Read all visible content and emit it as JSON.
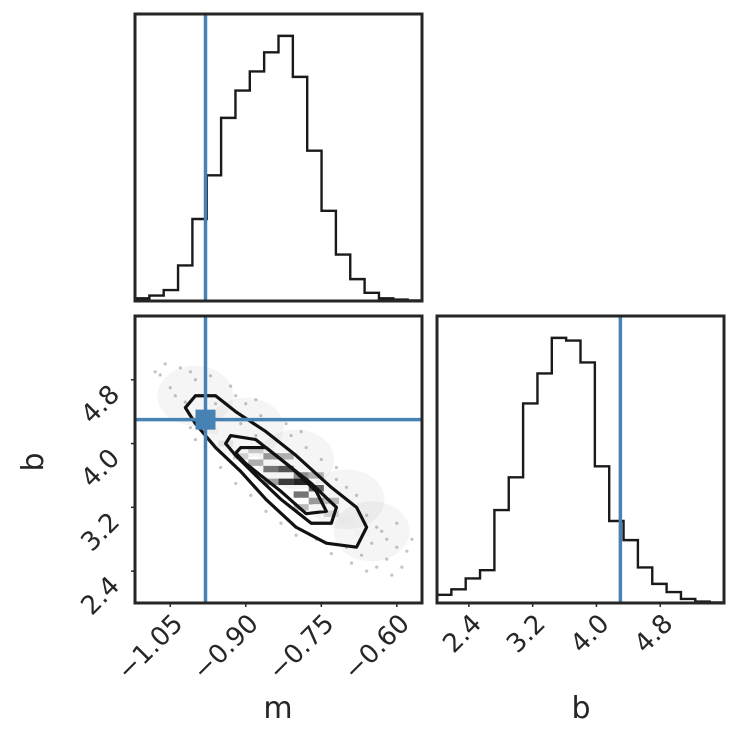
{
  "chart_data": {
    "type": "corner",
    "parameters": [
      "m",
      "b"
    ],
    "truths": {
      "m": -0.98,
      "b": 4.3
    },
    "colors": {
      "truth": "#4682b4",
      "hist": "#1a1a1a",
      "frame": "#262626",
      "contour": "#111111"
    },
    "hist_m": {
      "xlim": [
        -1.12,
        -0.55
      ],
      "ymax": 1.0,
      "bin_edges": [
        -1.12,
        -1.0915,
        -1.063,
        -1.0345,
        -1.006,
        -0.9775,
        -0.949,
        -0.9205,
        -0.892,
        -0.8635,
        -0.835,
        -0.8065,
        -0.778,
        -0.7495,
        -0.721,
        -0.6925,
        -0.664,
        -0.6355,
        -0.607,
        -0.5785,
        -0.55
      ],
      "counts": [
        0.01,
        0.02,
        0.04,
        0.13,
        0.3,
        0.46,
        0.67,
        0.77,
        0.84,
        0.91,
        0.97,
        0.82,
        0.55,
        0.33,
        0.17,
        0.08,
        0.03,
        0.01,
        0.005,
        0.002
      ]
    },
    "hist_b": {
      "xlim": [
        2.0,
        5.6
      ],
      "ymax": 1.0,
      "bin_edges": [
        2.0,
        2.18,
        2.36,
        2.54,
        2.72,
        2.9,
        3.08,
        3.26,
        3.44,
        3.62,
        3.8,
        3.98,
        4.16,
        4.34,
        4.52,
        4.7,
        4.88,
        5.06,
        5.24,
        5.42,
        5.6
      ],
      "counts": [
        0.03,
        0.05,
        0.09,
        0.12,
        0.34,
        0.46,
        0.73,
        0.84,
        0.97,
        0.96,
        0.88,
        0.5,
        0.3,
        0.23,
        0.13,
        0.07,
        0.04,
        0.015,
        0.005,
        0.002
      ]
    },
    "scatter": {
      "xlim": [
        -1.12,
        -0.55
      ],
      "ylim": [
        2.0,
        5.6
      ],
      "x_tick_labels": [
        "−1.05",
        "−0.90",
        "−0.75",
        "−0.60"
      ],
      "x_ticks": [
        -1.05,
        -0.9,
        -0.75,
        -0.6
      ],
      "y_tick_labels": [
        "2.4",
        "3.2",
        "4.0",
        "4.8"
      ],
      "y_ticks": [
        2.4,
        3.2,
        4.0,
        4.8
      ],
      "contours": [
        [
          [
            -1.0,
            4.6
          ],
          [
            -0.96,
            4.6
          ],
          [
            -0.92,
            4.4
          ],
          [
            -0.86,
            4.15
          ],
          [
            -0.8,
            3.85
          ],
          [
            -0.73,
            3.45
          ],
          [
            -0.68,
            3.2
          ],
          [
            -0.66,
            2.95
          ],
          [
            -0.68,
            2.7
          ],
          [
            -0.74,
            2.75
          ],
          [
            -0.8,
            2.95
          ],
          [
            -0.86,
            3.3
          ],
          [
            -0.91,
            3.65
          ],
          [
            -0.96,
            3.95
          ],
          [
            -1.0,
            4.25
          ],
          [
            -1.02,
            4.45
          ]
        ],
        [
          [
            -0.93,
            4.1
          ],
          [
            -0.88,
            4.05
          ],
          [
            -0.83,
            3.8
          ],
          [
            -0.77,
            3.5
          ],
          [
            -0.72,
            3.2
          ],
          [
            -0.73,
            3.0
          ],
          [
            -0.77,
            3.0
          ],
          [
            -0.83,
            3.3
          ],
          [
            -0.88,
            3.6
          ],
          [
            -0.92,
            3.85
          ],
          [
            -0.94,
            4.0
          ]
        ],
        [
          [
            -0.91,
            3.95
          ],
          [
            -0.86,
            3.95
          ],
          [
            -0.81,
            3.7
          ],
          [
            -0.76,
            3.4
          ],
          [
            -0.74,
            3.15
          ],
          [
            -0.78,
            3.12
          ],
          [
            -0.83,
            3.4
          ],
          [
            -0.87,
            3.6
          ],
          [
            -0.9,
            3.75
          ],
          [
            -0.92,
            3.88
          ]
        ]
      ],
      "density_cells": [
        [
          -0.88,
          3.92,
          0.25
        ],
        [
          -0.85,
          3.84,
          0.45
        ],
        [
          -0.82,
          3.84,
          0.35
        ],
        [
          -0.88,
          3.76,
          0.35
        ],
        [
          -0.85,
          3.68,
          0.6
        ],
        [
          -0.82,
          3.68,
          0.75
        ],
        [
          -0.79,
          3.6,
          0.5
        ],
        [
          -0.82,
          3.52,
          0.85
        ],
        [
          -0.79,
          3.52,
          0.95
        ],
        [
          -0.76,
          3.44,
          0.7
        ],
        [
          -0.79,
          3.36,
          0.6
        ],
        [
          -0.76,
          3.28,
          0.45
        ],
        [
          -0.73,
          3.28,
          0.3
        ],
        [
          -0.85,
          3.52,
          0.4
        ],
        [
          -0.76,
          3.6,
          0.35
        ],
        [
          -0.91,
          3.84,
          0.2
        ],
        [
          -0.73,
          3.12,
          0.2
        ],
        [
          -0.79,
          3.2,
          0.3
        ],
        [
          -0.94,
          4.0,
          0.12
        ],
        [
          -0.7,
          3.04,
          0.1
        ],
        [
          -0.97,
          4.16,
          0.08
        ],
        [
          -0.67,
          2.88,
          0.06
        ]
      ],
      "points": [
        [
          -1.07,
          4.86
        ],
        [
          -1.05,
          4.7
        ],
        [
          -1.03,
          4.95
        ],
        [
          -1.0,
          4.8
        ],
        [
          -0.98,
          4.66
        ],
        [
          -1.02,
          4.52
        ],
        [
          -1.04,
          4.6
        ],
        [
          -0.95,
          4.55
        ],
        [
          -0.93,
          4.72
        ],
        [
          -0.9,
          4.5
        ],
        [
          -0.87,
          4.35
        ],
        [
          -0.84,
          4.3
        ],
        [
          -0.81,
          4.1
        ],
        [
          -0.78,
          3.95
        ],
        [
          -0.75,
          3.8
        ],
        [
          -0.72,
          3.7
        ],
        [
          -0.7,
          3.45
        ],
        [
          -0.68,
          3.35
        ],
        [
          -0.66,
          3.1
        ],
        [
          -0.64,
          2.95
        ],
        [
          -0.62,
          2.8
        ],
        [
          -0.6,
          2.7
        ],
        [
          -0.62,
          2.55
        ],
        [
          -0.64,
          2.45
        ],
        [
          -0.67,
          2.6
        ],
        [
          -0.7,
          2.7
        ],
        [
          -0.73,
          2.62
        ],
        [
          -0.76,
          2.8
        ],
        [
          -0.8,
          2.85
        ],
        [
          -0.83,
          3.0
        ],
        [
          -0.86,
          3.15
        ],
        [
          -0.89,
          3.35
        ],
        [
          -0.92,
          3.5
        ],
        [
          -0.95,
          3.7
        ],
        [
          -0.98,
          3.9
        ],
        [
          -1.0,
          4.05
        ],
        [
          -1.01,
          4.2
        ],
        [
          -0.99,
          4.4
        ],
        [
          -0.96,
          4.5
        ],
        [
          -0.61,
          2.35
        ],
        [
          -0.63,
          2.9
        ],
        [
          -0.58,
          2.65
        ],
        [
          -0.69,
          2.5
        ],
        [
          -0.74,
          3.1
        ],
        [
          -0.77,
          3.25
        ],
        [
          -0.85,
          3.9
        ],
        [
          -0.88,
          4.1
        ],
        [
          -0.91,
          4.25
        ],
        [
          -0.94,
          4.3
        ],
        [
          -0.97,
          4.2
        ],
        [
          -0.65,
          2.75
        ],
        [
          -0.6,
          3.0
        ],
        [
          -0.57,
          2.8
        ],
        [
          -0.59,
          2.45
        ],
        [
          -0.66,
          2.4
        ],
        [
          -1.08,
          4.9
        ],
        [
          -1.06,
          5.0
        ],
        [
          -1.01,
          4.9
        ],
        [
          -0.97,
          4.85
        ],
        [
          -0.92,
          4.6
        ],
        [
          -0.88,
          4.55
        ],
        [
          -0.82,
          4.25
        ],
        [
          -0.79,
          4.15
        ],
        [
          -0.72,
          3.55
        ]
      ]
    },
    "axis_labels": {
      "x_left": "m",
      "x_right": "b",
      "y_left": "b"
    },
    "b_tick_labels": [
      "2.4",
      "3.2",
      "4.0",
      "4.8"
    ],
    "b_ticks": [
      2.4,
      3.2,
      4.0,
      4.8
    ]
  }
}
